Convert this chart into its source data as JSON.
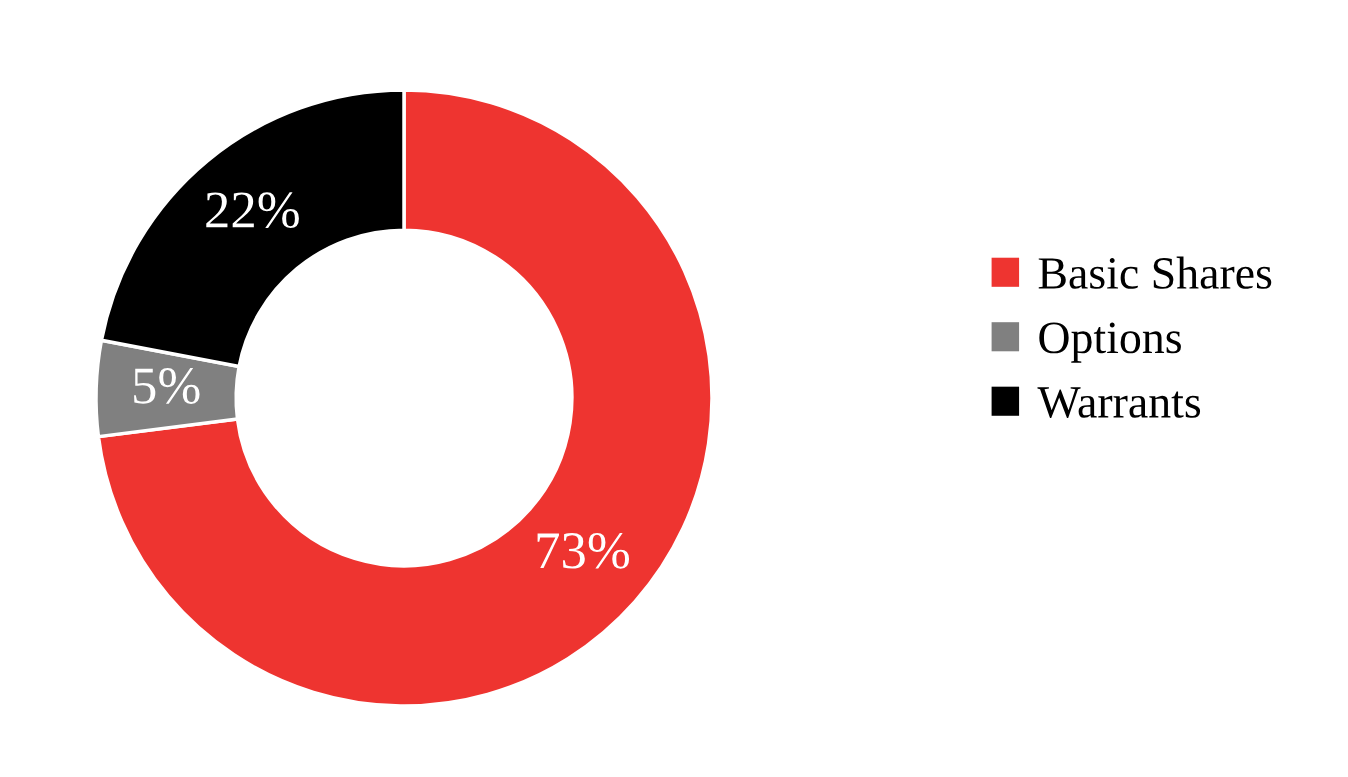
{
  "chart_data": {
    "type": "donut",
    "categories": [
      "Basic Shares",
      "Options",
      "Warrants"
    ],
    "values": [
      73,
      5,
      22
    ],
    "colors": [
      "#ee3430",
      "#808080",
      "#000000"
    ],
    "value_labels": [
      "73%",
      "5%",
      "22%"
    ],
    "legend": "right"
  }
}
